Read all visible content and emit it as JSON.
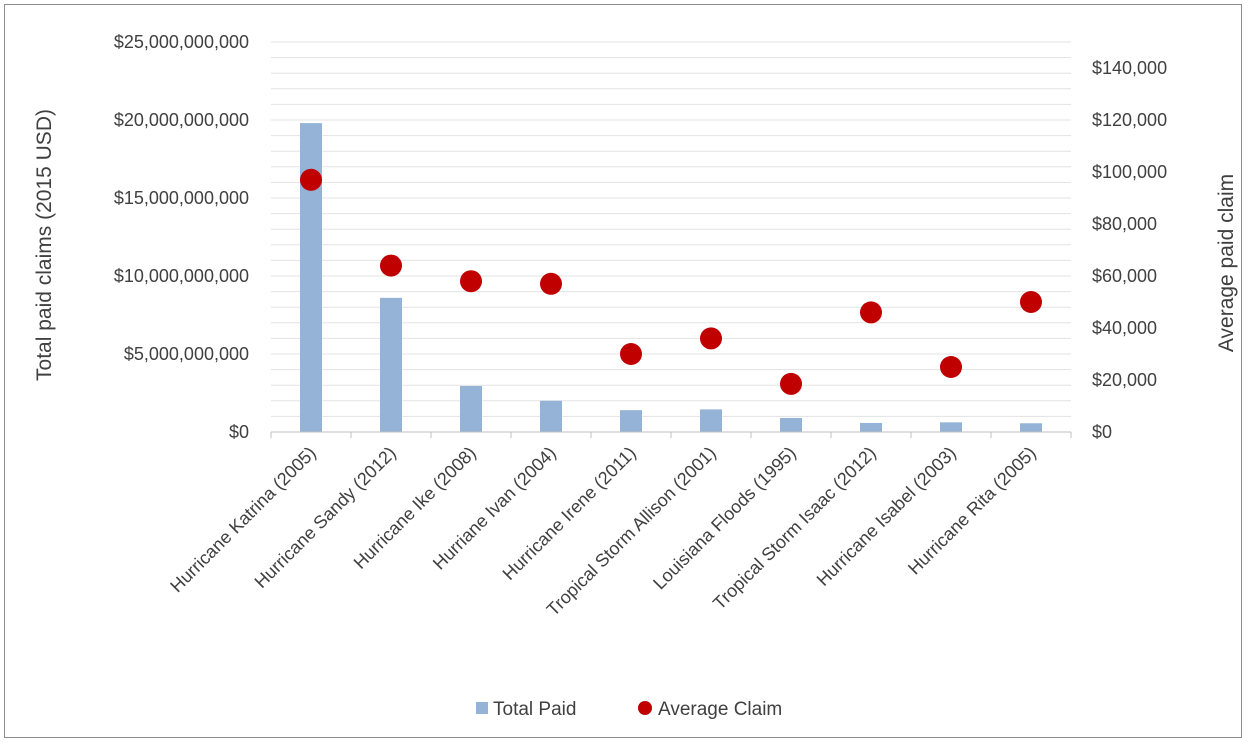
{
  "chart_data": {
    "type": "bar",
    "categories": [
      "Hurricane Katrina (2005)",
      "Hurricane Sandy (2012)",
      "Hurricane Ike (2008)",
      "Hurriane Ivan (2004)",
      "Hurricane Irene (2011)",
      "Tropical Storm Allison (2001)",
      "Louisiana Floods (1995)",
      "Tropical Storm Isaac (2012)",
      "Hurricane Isabel (2003)",
      "Hurricane Rita (2005)"
    ],
    "series": [
      {
        "name": "Total Paid",
        "type": "bar",
        "axis": "left",
        "color": "#95b3d7",
        "values": [
          19800000000,
          8600000000,
          2950000000,
          2000000000,
          1400000000,
          1450000000,
          900000000,
          580000000,
          620000000,
          560000000
        ]
      },
      {
        "name": "Average Claim",
        "type": "scatter",
        "axis": "right",
        "color": "#c00000",
        "values": [
          97000,
          64000,
          58000,
          57000,
          30000,
          36000,
          18500,
          46000,
          25000,
          50000
        ]
      }
    ],
    "ylabel": "Total paid claims (2015 USD)",
    "ylabel_right": "Average paid claim",
    "ylim": [
      0,
      25000000000
    ],
    "ylim_right": [
      0,
      150000
    ],
    "yticks": [
      0,
      5000000000,
      10000000000,
      15000000000,
      20000000000,
      25000000000
    ],
    "yticks_right": [
      0,
      20000,
      40000,
      60000,
      80000,
      100000,
      120000,
      140000
    ],
    "ytick_labels": [
      "$0",
      "$5,000,000,000",
      "$10,000,000,000",
      "$15,000,000,000",
      "$20,000,000,000",
      "$25,000,000,000"
    ],
    "ytick_labels_right": [
      "$0",
      "$20,000",
      "$40,000",
      "$60,000",
      "$80,000",
      "$100,000",
      "$120,000",
      "$140,000"
    ],
    "grid": true,
    "legend": "bottom-center",
    "legend_entries": [
      "Total Paid",
      "Average Claim"
    ]
  }
}
